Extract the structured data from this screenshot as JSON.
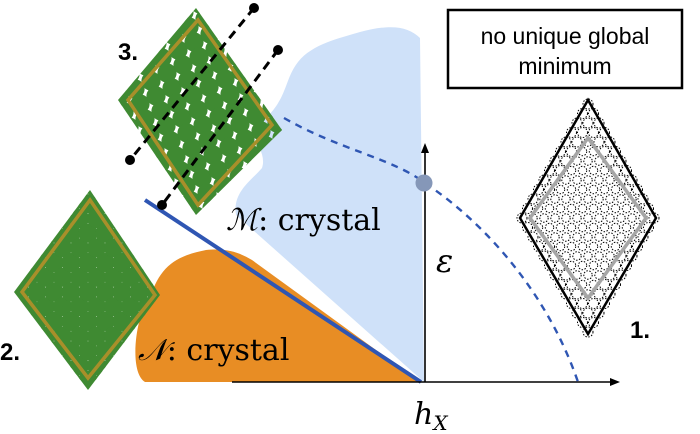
{
  "note_box": {
    "line1": "no unique global",
    "line2": "minimum"
  },
  "regions": {
    "m_symbol": "ℳ",
    "m_text": ": crystal",
    "n_symbol": "𝒩",
    "n_text": ": crystal"
  },
  "axes": {
    "x_label": "h",
    "x_sub": "X",
    "y_label": "ε"
  },
  "markers": {
    "m1": "1.",
    "m2": "2.",
    "m3": "3."
  },
  "colors": {
    "m_region": "#cfe1f9",
    "n_region": "#e88d24",
    "boundary_line": "#2f56b3",
    "dashed_curve": "#2f56b3",
    "critical_point": "#8597b8",
    "particle_green": "#3f8a32",
    "cell_outline": "#a88f2a",
    "axis": "#000000"
  },
  "icons": {
    "point": "critical-point-dot"
  }
}
